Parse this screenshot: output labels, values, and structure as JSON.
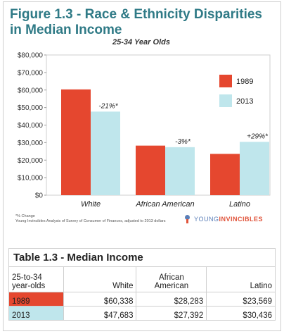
{
  "figure_title": "Figure 1.3 - Race & Ethnicity Disparities in Median Income",
  "chart_data": {
    "type": "bar",
    "title": "25-34 Year Olds",
    "categories": [
      "White",
      "African American",
      "Latino"
    ],
    "series": [
      {
        "name": "1989",
        "values": [
          60338,
          28283,
          23569
        ],
        "color": "#e5472f"
      },
      {
        "name": "2013",
        "values": [
          47683,
          27392,
          30436
        ],
        "color": "#bfe6ec"
      }
    ],
    "annotations": [
      "-21%*",
      "-3%*",
      "+29%*"
    ],
    "ylim": [
      0,
      80000
    ],
    "yticks": [
      0,
      10000,
      20000,
      30000,
      40000,
      50000,
      60000,
      70000,
      80000
    ],
    "ytick_labels": [
      "$0",
      "$10,000",
      "$20,000",
      "$30,000",
      "$40,000",
      "$50,000",
      "$60,000",
      "$70,000",
      "$80,000"
    ],
    "legend_position": "right",
    "grid": false
  },
  "footnote": {
    "line1": "*% Change",
    "line2": "Young Invincibles Analysis of Survey of Consumer of Finances, adjusted to 2013 dollars"
  },
  "brand": {
    "part1": "YOUNG",
    "part2": "INVINCIBLES"
  },
  "table": {
    "title": "Table 1.3 -  Median Income",
    "header": {
      "c0_line1": "25-to-34",
      "c0_line2": "year-olds",
      "c1": "White",
      "c2_line1": "African",
      "c2_line2": "American",
      "c3": "Latino"
    },
    "rows": [
      {
        "label": "1989",
        "values": [
          "$60,338",
          "$28,283",
          "$23,569"
        ]
      },
      {
        "label": "2013",
        "values": [
          "$47,683",
          "$27,392",
          "$30,436"
        ]
      }
    ]
  },
  "colors": {
    "title": "#2f7a86",
    "bar_1989": "#e5472f",
    "bar_2013": "#bfe6ec",
    "brand_blue": "#5b7fb8",
    "brand_red": "#e0533a"
  }
}
